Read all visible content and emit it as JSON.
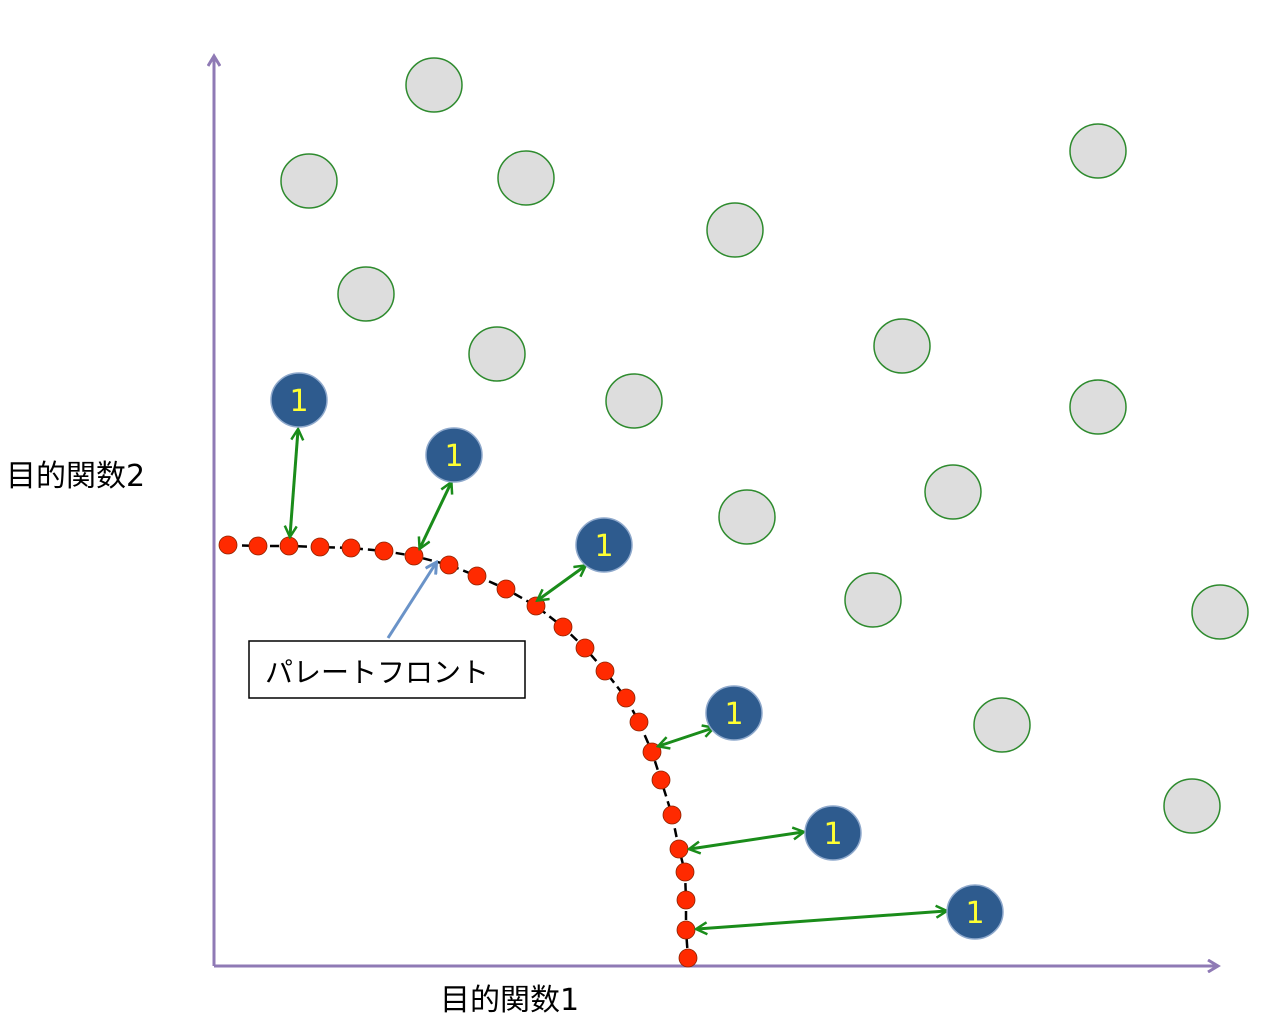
{
  "axes": {
    "x_label": "目的関数1",
    "y_label": "目的関数2",
    "color": "#8f7ab5"
  },
  "callout": {
    "label": "パレートフロント",
    "arrow_color": "#6a93c8"
  },
  "pareto_front": {
    "point_color": "#ff2a00",
    "line_color": "#000000",
    "point_count": 24
  },
  "rank_one_solutions": {
    "label": "1",
    "fill_color": "#2e5b8e",
    "text_color": "#ffff33",
    "count": 6
  },
  "distance_arrows": {
    "color": "#1a8c1a",
    "count": 6
  },
  "dominated_solutions": {
    "fill_color": "#dddddd",
    "stroke_color": "#2e8b2e",
    "count": 18
  }
}
